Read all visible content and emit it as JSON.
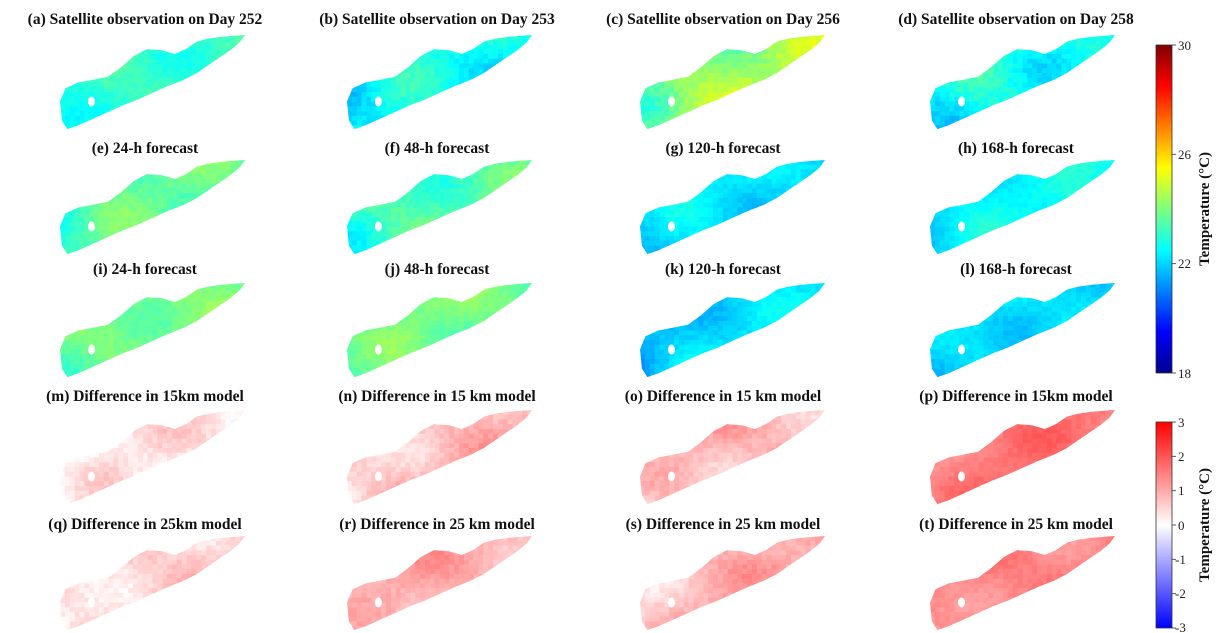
{
  "chart_data": {
    "type": "heatmap",
    "panels": [
      {
        "title": "(a) Satellite observation on Day 252",
        "kind": "temp",
        "mean": 23.2,
        "spread": 0.9,
        "seed": 1
      },
      {
        "title": "(b) Satellite observation on Day 253",
        "kind": "temp",
        "mean": 22.6,
        "spread": 1.2,
        "seed": 2
      },
      {
        "title": "(c) Satellite observation on Day 256",
        "kind": "temp",
        "mean": 24.4,
        "spread": 1.3,
        "seed": 3
      },
      {
        "title": "(d) Satellite observation on Day 258",
        "kind": "temp",
        "mean": 22.8,
        "spread": 1.3,
        "seed": 4
      },
      {
        "title": "(e) 24-h forecast",
        "kind": "temp",
        "mean": 23.6,
        "spread": 1.0,
        "seed": 5
      },
      {
        "title": "(f) 48-h forecast",
        "kind": "temp",
        "mean": 23.5,
        "spread": 1.1,
        "seed": 6
      },
      {
        "title": "(g) 120-h forecast",
        "kind": "temp",
        "mean": 22.3,
        "spread": 0.9,
        "seed": 7
      },
      {
        "title": "(h) 168-h forecast",
        "kind": "temp",
        "mean": 22.5,
        "spread": 0.8,
        "seed": 8
      },
      {
        "title": "(i) 24-h forecast",
        "kind": "temp",
        "mean": 24.0,
        "spread": 0.9,
        "seed": 9
      },
      {
        "title": "(j) 48-h forecast",
        "kind": "temp",
        "mean": 23.9,
        "spread": 0.9,
        "seed": 10
      },
      {
        "title": "(k) 120-h forecast",
        "kind": "temp",
        "mean": 22.1,
        "spread": 0.9,
        "seed": 11
      },
      {
        "title": "(l) 168-h forecast",
        "kind": "temp",
        "mean": 22.2,
        "spread": 0.8,
        "seed": 12
      },
      {
        "title": "(m) Difference in 15km model",
        "kind": "diff",
        "mean": 0.3,
        "spread": 0.8,
        "seed": 13
      },
      {
        "title": "(n) Difference in 15 km model",
        "kind": "diff",
        "mean": 0.8,
        "spread": 0.8,
        "seed": 14
      },
      {
        "title": "(o) Difference in 15 km model",
        "kind": "diff",
        "mean": 0.9,
        "spread": 0.8,
        "seed": 15
      },
      {
        "title": "(p) Difference in 15km model",
        "kind": "diff",
        "mean": 1.6,
        "spread": 0.6,
        "seed": 16
      },
      {
        "title": "(q) Difference in 25km model",
        "kind": "diff",
        "mean": 0.6,
        "spread": 0.8,
        "seed": 17
      },
      {
        "title": "(r) Difference in 25 km model",
        "kind": "diff",
        "mean": 1.0,
        "spread": 0.7,
        "seed": 18
      },
      {
        "title": "(s) Difference in 25 km model",
        "kind": "diff",
        "mean": 0.9,
        "spread": 0.8,
        "seed": 19
      },
      {
        "title": "(t)  Difference in 25 km model",
        "kind": "diff",
        "mean": 1.5,
        "spread": 0.6,
        "seed": 20
      }
    ],
    "colorbars": [
      {
        "name": "temperature",
        "label": "Temperature (°C)",
        "range": [
          18,
          30
        ],
        "ticks": [
          "30",
          "26",
          "22",
          "18"
        ],
        "colormap": "jet"
      },
      {
        "name": "difference",
        "label": "Temperature (°C)",
        "range": [
          -3,
          3
        ],
        "ticks": [
          "3",
          "2",
          "1",
          "0",
          "-1",
          "-2",
          "-3"
        ],
        "colormap": "blue-white-red"
      }
    ]
  }
}
